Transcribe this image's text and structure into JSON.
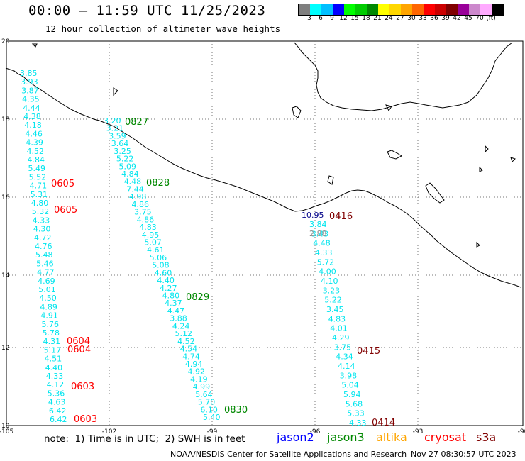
{
  "header": {
    "title": "00:00 – 11:59 UTC 11/25/2023",
    "subtitle": "12 hour collection of altimeter wave heights"
  },
  "colorbar": {
    "colors": [
      "#7f7f7f",
      "#00ffff",
      "#00bfff",
      "#0000ff",
      "#00ff00",
      "#00cc00",
      "#008800",
      "#ffff00",
      "#ffd700",
      "#ffa500",
      "#ff6600",
      "#ff0000",
      "#cc0000",
      "#800000",
      "#990099",
      "#cc88cc",
      "#ffaaff",
      "#000000"
    ],
    "labels": [
      "3",
      "6",
      "9",
      "12",
      "15",
      "18",
      "21",
      "24",
      "27",
      "30",
      "33",
      "36",
      "39",
      "42",
      "45",
      "70",
      "(ft)"
    ]
  },
  "axes": {
    "x_ticks": [
      "-105",
      "-102",
      "-99",
      "-96",
      "-93",
      "-90"
    ],
    "y_ticks": [
      "20",
      "18",
      "16",
      "14",
      "12",
      "10"
    ]
  },
  "passes": {
    "west": [
      "3.85",
      "3.93",
      "3.87",
      "4.35",
      "4.44",
      "4.38",
      "4.18",
      "4.46",
      "4.39",
      "4.52",
      "4.84",
      "5.49",
      "5.52",
      "4.71",
      "5.31",
      "4.80",
      "5.32",
      "4.33",
      "4.30",
      "4.72",
      "4.76",
      "5.48",
      "5.46",
      "4.77",
      "4.69",
      "5.01",
      "4.50",
      "4.89",
      "4.91",
      "5.76",
      "5.78",
      "4.31",
      "5.17",
      "4.51",
      "4.40",
      "4.33",
      "4.12",
      "5.36",
      "4.63",
      "6.42",
      "6.42"
    ],
    "center": [
      "3.20",
      "3.21",
      "3.59",
      "3.64",
      "3.25",
      "5.22",
      "5.09",
      "4.84",
      "4.48",
      "7.44",
      "4.98",
      "4.86",
      "3.75",
      "4.86",
      "4.83",
      "4.95",
      "5.07",
      "4.61",
      "5.06",
      "5.08",
      "4.60",
      "4.40",
      "4.27",
      "4.80",
      "4.37",
      "4.47",
      "3.88",
      "4.24",
      "5.12",
      "4.52",
      "4.54",
      "4.74",
      "4.94",
      "4.92",
      "4.19",
      "4.99",
      "5.64",
      "5.70",
      "6.10",
      "5.40"
    ],
    "east_dark": [
      "10.95"
    ],
    "east": [
      "3.84",
      "3.43",
      "4.48",
      "4.33",
      "5.72",
      "4.00",
      "4.10",
      "3.23",
      "5.22",
      "3.45",
      "4.83",
      "4.01",
      "4.29",
      "3.75",
      "4.34",
      "4.14",
      "3.98",
      "5.04",
      "5.94",
      "5.68",
      "5.33",
      "4.33"
    ],
    "east_gray": [
      "2.88"
    ]
  },
  "times": {
    "west_1": "0605",
    "west_2": "0605",
    "west_3": "0604",
    "west_4": "0604",
    "west_5": "0603",
    "west_6": "0603",
    "center_1": "0827",
    "center_2": "0828",
    "center_3": "0829",
    "center_4": "0830",
    "east_1": "0416",
    "east_2": "0415",
    "east_3": "0414"
  },
  "legend": {
    "note": "note:  1) Time is in UTC;  2) SWH is in feet",
    "jason2": "jason2",
    "jason3": "jason3",
    "altika": "altika",
    "cryosat": "cryosat",
    "s3a": "s3a"
  },
  "footer": {
    "agency": "NOAA/NESDIS Center for Satellite Applications and Research",
    "timestamp": "Nov 27 08:30:57 UTC 2023"
  },
  "colors": {
    "cyan_track": "#00e5ee",
    "jason2": "#0000ff",
    "jason3": "#008800",
    "altika": "#ffa500",
    "cryosat": "#ff0000",
    "s3a": "#800000",
    "gray": "#8c8c8c",
    "dark_blue": "#000088"
  }
}
